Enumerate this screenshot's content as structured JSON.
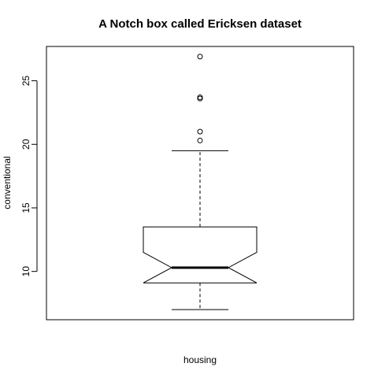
{
  "chart_data": {
    "type": "boxplot",
    "title": "A Notch box called Ericksen dataset",
    "xlabel": "housing",
    "ylabel": "conventional",
    "notched": true,
    "ylim": [
      6.2,
      27.7
    ],
    "yticks": [
      10,
      15,
      20,
      25
    ],
    "box": {
      "whisker_low": 7.0,
      "q1": 9.1,
      "notch_low": 9.1,
      "median": 10.3,
      "notch_high": 11.5,
      "q3": 13.5,
      "whisker_high": 19.5
    },
    "outliers": [
      20.3,
      21.0,
      23.6,
      23.7,
      26.9
    ]
  }
}
